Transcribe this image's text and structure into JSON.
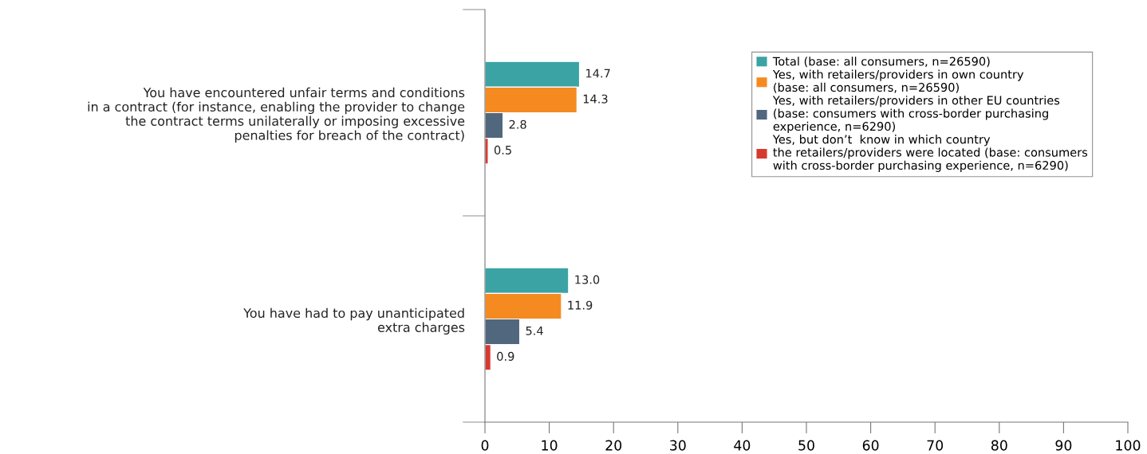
{
  "chart_data": {
    "type": "bar",
    "orientation": "horizontal",
    "categories": [
      "You have encountered unfair terms and conditions\nin a contract (for instance, enabling the provider to change\nthe contract terms unilaterally or imposing excessive\npenalties for breach of the contract)",
      "You have had to pay unanticipated\nextra charges"
    ],
    "series": [
      {
        "name": "Total (base: all consumers, n=26590)",
        "color": "#3ba3a4",
        "values": [
          14.7,
          13.0
        ],
        "value_labels": [
          "14.7",
          "13.0"
        ]
      },
      {
        "name": "Yes, with retailers/providers in own country\n(base: all consumers, n=26590)",
        "color": "#f58b20",
        "values": [
          14.3,
          11.9
        ],
        "value_labels": [
          "14.3",
          "11.9"
        ]
      },
      {
        "name": "Yes, with retailers/providers in other EU countries\n(base: consumers with cross-border purchasing\nexperience, n=6290)",
        "color": "#51677e",
        "values": [
          2.8,
          5.4
        ],
        "value_labels": [
          "2.8",
          "5.4"
        ]
      },
      {
        "name": "Yes, but don’t  know in which country\nthe retailers/providers were located (base: consumers\nwith cross-border purchasing experience, n=6290)",
        "color": "#d63a2f",
        "values": [
          0.5,
          0.9
        ],
        "value_labels": [
          "0.5",
          "0.9"
        ]
      }
    ],
    "xlim": [
      0,
      100
    ],
    "xticks": [
      0,
      10,
      20,
      30,
      40,
      50,
      60,
      70,
      80,
      90,
      100
    ],
    "legend": "top right",
    "grid": false
  }
}
